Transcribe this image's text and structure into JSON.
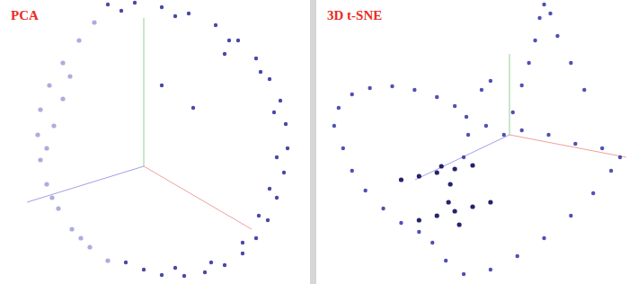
{
  "chart_data": [
    {
      "type": "scatter",
      "title": "PCA",
      "xlim": [
        0,
        345
      ],
      "ylim": [
        0,
        316
      ],
      "tick_labels": false,
      "marker": "circle",
      "series": [
        {
          "color": "#1c1c8f",
          "x": [
            120,
            150,
            180,
            210,
            240,
            265,
            285,
            300,
            312,
            318,
            320,
            316,
            308,
            298,
            285,
            270,
            250,
            228,
            205,
            180,
            160,
            140,
            135,
            195,
            255,
            290,
            305,
            308,
            300,
            288,
            270,
            235,
            195,
            215,
            250,
            180
          ],
          "values": [
            311,
            313,
            308,
            301,
            288,
            271,
            251,
            228,
            204,
            178,
            151,
            124,
            96,
            71,
            51,
            34,
            21,
            13,
            9,
            10,
            16,
            24,
            304,
            298,
            271,
            236,
            191,
            141,
            106,
            76,
            46,
            24,
            18,
            196,
            256,
            221
          ]
        },
        {
          "color": "#a3a3db",
          "x": [
            120,
            100,
            80,
            65,
            52,
            45,
            42,
            45,
            55,
            70,
            88,
            105,
            60,
            52,
            70,
            58,
            90,
            78
          ],
          "values": [
            26,
            41,
            61,
            84,
            111,
            138,
            166,
            194,
            221,
            246,
            271,
            291,
            176,
            151,
            206,
            96,
            51,
            231
          ]
        }
      ]
    },
    {
      "type": "scatter",
      "title": "3D t-SNE",
      "xlim": [
        0,
        350
      ],
      "ylim": [
        0,
        316
      ],
      "tick_labels": false,
      "marker": "circle",
      "series": [
        {
          "color": "#2424a0",
          "x": [
            20,
            25,
            40,
            60,
            85,
            110,
            135,
            155,
            168,
            30,
            40,
            55,
            75,
            95,
            115,
            170,
            165,
            255,
            250,
            245,
            238,
            230,
            220,
            210,
            262,
            270,
            285,
            300,
            195,
            185,
            190,
            130,
            145,
            165,
            195,
            225,
            255,
            285,
            310,
            330,
            340,
            320,
            290,
            260,
            230
          ],
          "values": [
            176,
            196,
            211,
            218,
            220,
            216,
            208,
            198,
            186,
            151,
            126,
            104,
            84,
            68,
            58,
            166,
            141,
            311,
            296,
            271,
            246,
            221,
            191,
            166,
            301,
            276,
            246,
            216,
            226,
            216,
            176,
            46,
            26,
            11,
            16,
            31,
            51,
            76,
            101,
            126,
            141,
            151,
            156,
            166,
            171
          ]
        },
        {
          "color": "#0b0b5c",
          "x": [
            95,
            115,
            135,
            155,
            175,
            115,
            135,
            155,
            175,
            195,
            150,
            148,
            160,
            140
          ],
          "values": [
            116,
            120,
            124,
            128,
            132,
            71,
            76,
            81,
            86,
            91,
            111,
            91,
            66,
            131
          ]
        }
      ]
    }
  ]
}
